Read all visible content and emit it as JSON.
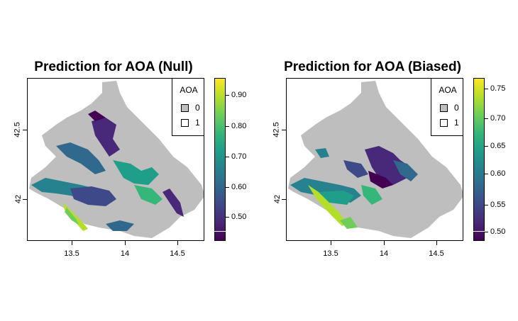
{
  "panels": [
    {
      "title": "Prediction for AOA (Null)",
      "x_ticks": [
        "13.5",
        "14",
        "14.5"
      ],
      "y_ticks": [
        "42.5",
        "42"
      ],
      "legend": {
        "title": "AOA",
        "items": [
          {
            "label": "0",
            "color": "#bebebe"
          },
          {
            "label": "1",
            "color": "#ffffff"
          }
        ]
      },
      "colorbar": {
        "min": 0.42,
        "max": 0.96,
        "ticks": [
          "0.50",
          "0.60",
          "0.70",
          "0.80",
          "0.90"
        ],
        "palette": "viridis"
      }
    },
    {
      "title": "Prediction for AOA (Biased)",
      "x_ticks": [
        "13.5",
        "14",
        "14.5"
      ],
      "y_ticks": [
        "42.5",
        "42"
      ],
      "legend": {
        "title": "AOA",
        "items": [
          {
            "label": "0",
            "color": "#bebebe"
          },
          {
            "label": "1",
            "color": "#ffffff"
          }
        ]
      },
      "colorbar": {
        "min": 0.48,
        "max": 0.77,
        "ticks": [
          "0.50",
          "0.55",
          "0.60",
          "0.65",
          "0.70",
          "0.75"
        ],
        "palette": "viridis"
      }
    }
  ]
}
